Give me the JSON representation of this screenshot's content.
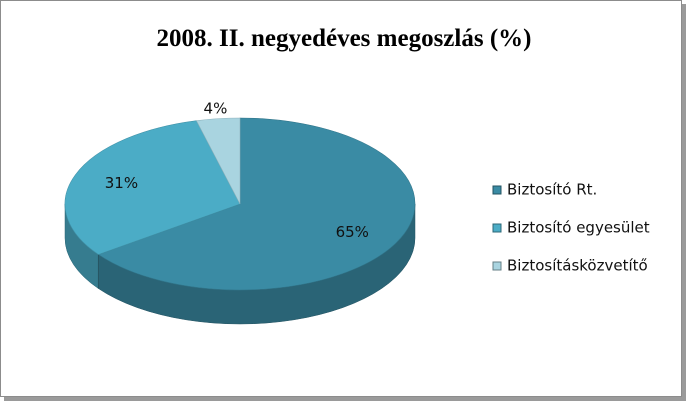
{
  "chart_data": {
    "type": "pie3d",
    "title": "2008. II. negyedéves megoszlás (%)",
    "categories": [
      "Biztosító Rt.",
      "Biztosító egyesület",
      "Biztosításközvetítő"
    ],
    "values": [
      65,
      31,
      4
    ],
    "value_labels": [
      "65%",
      "31%",
      "4%"
    ],
    "colors": [
      "#3a8ba4",
      "#4bacc6",
      "#a9d4e0"
    ],
    "legend": "right"
  }
}
